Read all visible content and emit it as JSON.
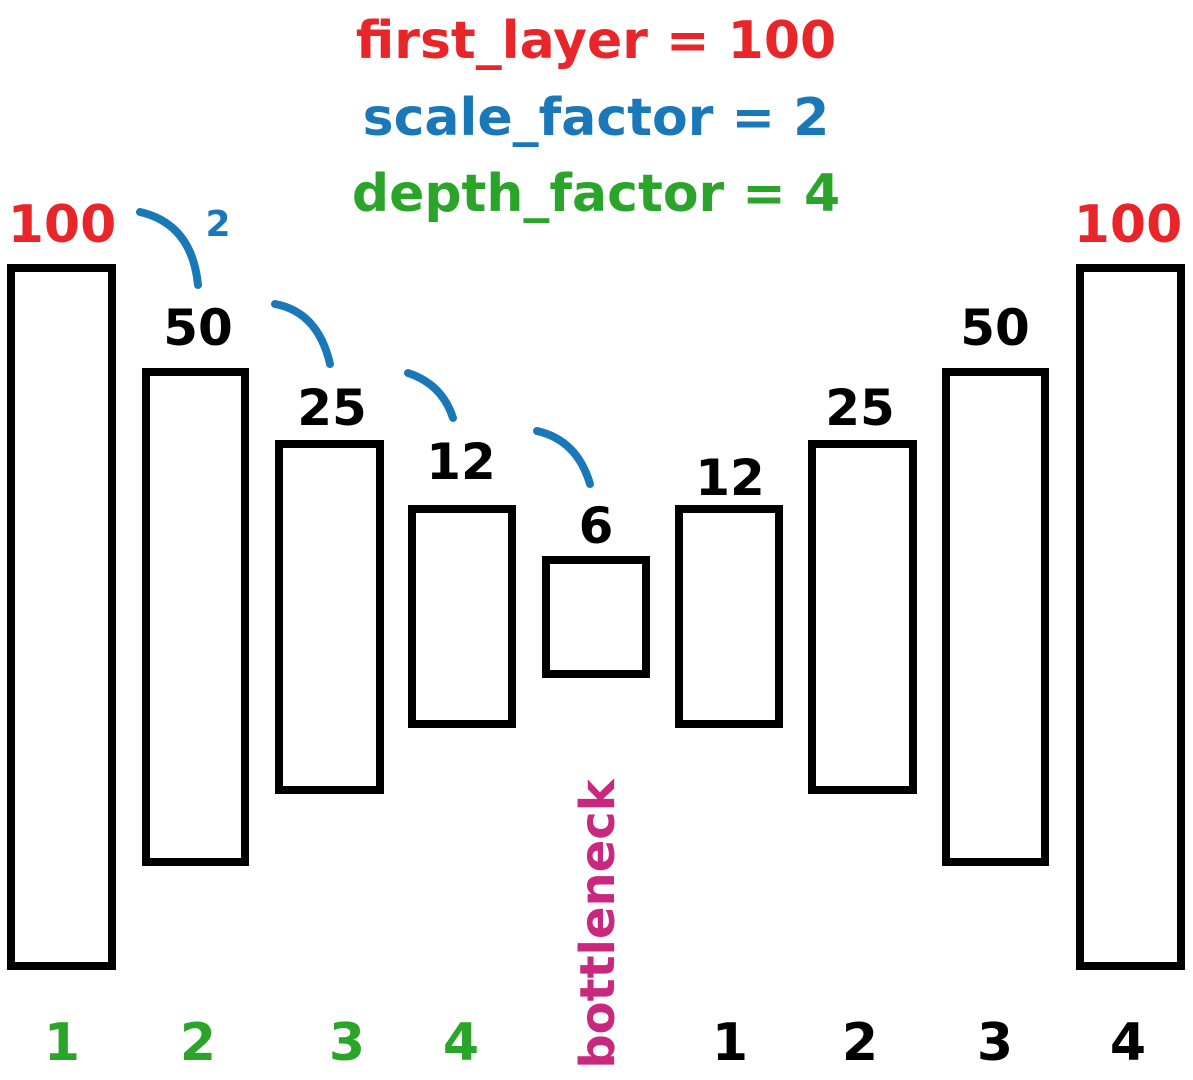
{
  "params": {
    "first_layer": "first_layer = 100",
    "scale_factor": "scale_factor = 2",
    "depth_factor": "depth_factor = 4"
  },
  "colors": {
    "first_layer": "#e8262a",
    "scale_factor": "#1a78b8",
    "depth_factor": "#2aa52a",
    "bottleneck": "#c8287e",
    "box_stroke": "#000000",
    "text": "#000000"
  },
  "scale_label": "2",
  "bottleneck_label": "bottleneck",
  "encoder": [
    {
      "size": "100",
      "depth": "1"
    },
    {
      "size": "50",
      "depth": "2"
    },
    {
      "size": "25",
      "depth": "3"
    },
    {
      "size": "12",
      "depth": "4"
    }
  ],
  "bottleneck": {
    "size": "6"
  },
  "decoder": [
    {
      "size": "12",
      "depth": "1"
    },
    {
      "size": "25",
      "depth": "2"
    },
    {
      "size": "50",
      "depth": "3"
    },
    {
      "size": "100",
      "depth": "4"
    }
  ]
}
